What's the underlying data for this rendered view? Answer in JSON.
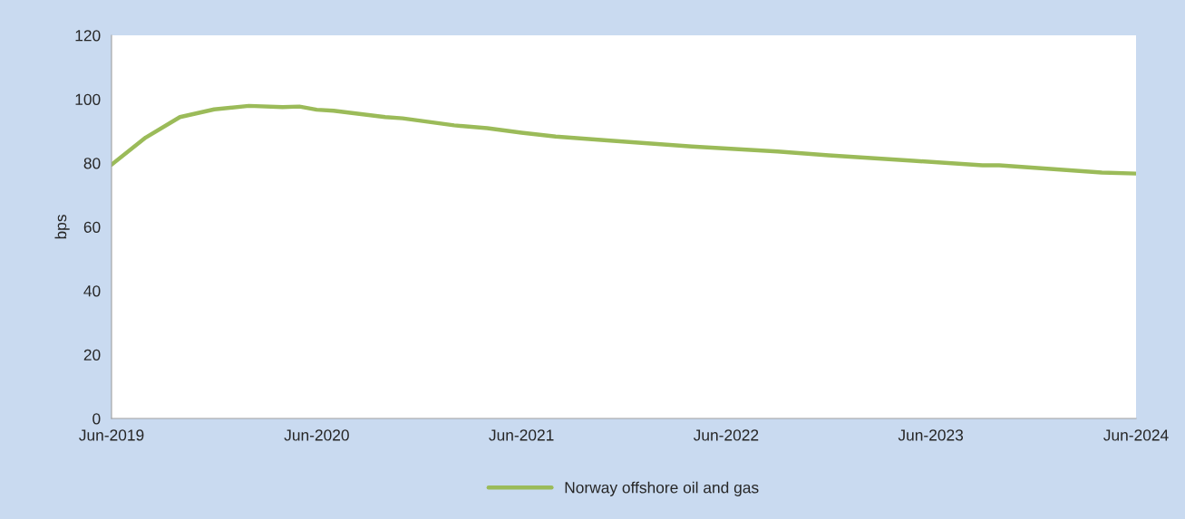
{
  "chart_data": {
    "type": "line",
    "ylabel": "bps",
    "x": [
      "2019-06",
      "2019-08",
      "2019-10",
      "2019-12",
      "2020-02",
      "2020-04",
      "2020-05",
      "2020-06",
      "2020-07",
      "2020-10",
      "2020-11",
      "2021-02",
      "2021-04",
      "2021-06",
      "2021-08",
      "2021-11",
      "2022-04",
      "2022-09",
      "2022-12",
      "2023-05",
      "2023-09",
      "2023-10",
      "2024-04",
      "2024-06"
    ],
    "series": [
      {
        "name": "Norway offshore oil and gas",
        "color": "#9bbb59",
        "values": [
          79.5,
          88.0,
          94.4,
          96.8,
          97.9,
          97.5,
          97.7,
          96.7,
          96.4,
          94.4,
          94.0,
          91.8,
          90.9,
          89.5,
          88.3,
          87.1,
          85.2,
          83.6,
          82.4,
          80.7,
          79.3,
          79.3,
          77.0,
          76.7
        ]
      }
    ],
    "xlim": [
      "2019-06",
      "2024-06"
    ],
    "xticks": [
      {
        "value": "2019-06",
        "label": "Jun-2019"
      },
      {
        "value": "2020-06",
        "label": "Jun-2020"
      },
      {
        "value": "2021-06",
        "label": "Jun-2021"
      },
      {
        "value": "2022-06",
        "label": "Jun-2022"
      },
      {
        "value": "2023-06",
        "label": "Jun-2023"
      },
      {
        "value": "2024-06",
        "label": "Jun-2024"
      }
    ],
    "ylim": [
      0,
      120
    ],
    "yticks": [
      0,
      20,
      40,
      60,
      80,
      100,
      120
    ],
    "grid": false,
    "legend": "bottom",
    "marker": "none",
    "line_style": "solid"
  }
}
